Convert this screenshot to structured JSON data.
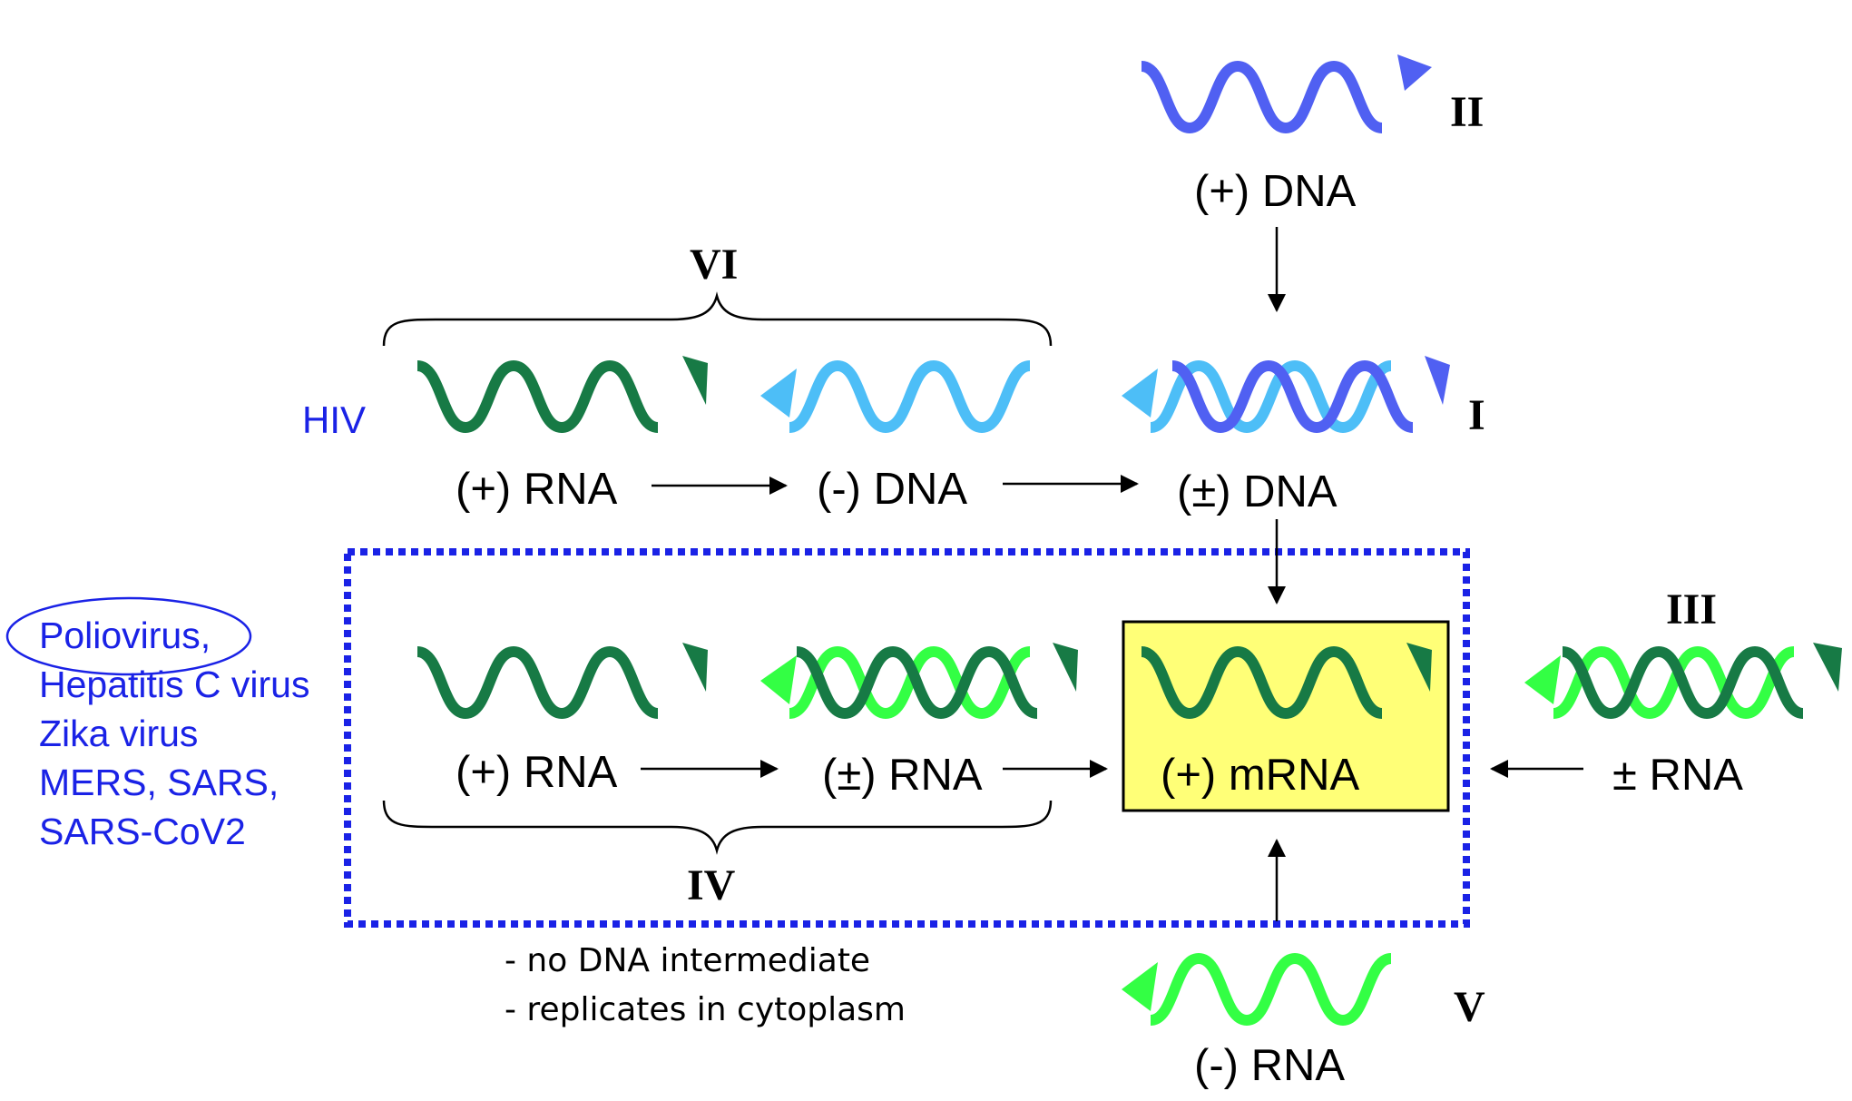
{
  "colors": {
    "dark_green": "#177a45",
    "bright_green": "#33ff44",
    "light_blue": "#4dbef7",
    "dna_blue": "#5060f2",
    "dotted_box": "#1a22e6",
    "mrna_box_fill": "#ffff77",
    "label_blue": "#1a22e6"
  },
  "classes": {
    "I": "I",
    "II": "II",
    "III": "III",
    "IV": "IV",
    "V": "V",
    "VI": "VI"
  },
  "labels": {
    "ds_dna_class1": "(±) DNA",
    "pos_dna_class2": "(+) DNA",
    "pos_rna_class6": "(+) RNA",
    "neg_dna_class6": "(-) DNA",
    "pos_rna_class4": "(+) RNA",
    "ds_rna_class4": "(±) RNA",
    "pos_mrna": "(+) mRNA",
    "ds_rna_class3": "± RNA",
    "neg_rna_class5": "(-) RNA"
  },
  "annotations": {
    "hiv": "HIV",
    "virus_list": [
      "Poliovirus,",
      "Hepatitis C virus",
      "Zika virus",
      "MERS, SARS,",
      "SARS-CoV2"
    ],
    "notes": [
      "- no DNA intermediate",
      "- replicates in cytoplasm"
    ]
  }
}
